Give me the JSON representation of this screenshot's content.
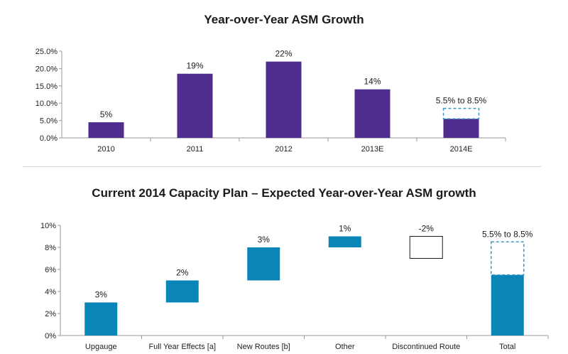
{
  "chart_data": [
    {
      "type": "bar",
      "title": "Year-over-Year ASM Growth",
      "categories": [
        "2010",
        "2011",
        "2012",
        "2013E",
        "2014E"
      ],
      "values": [
        4.5,
        18.5,
        22.0,
        14.0,
        5.5
      ],
      "data_labels": [
        "5%",
        "19%",
        "22%",
        "14%",
        "5.5% to 8.5%"
      ],
      "range_top": 8.5,
      "ylim": [
        0,
        25
      ],
      "yticks": [
        "0.0%",
        "5.0%",
        "10.0%",
        "15.0%",
        "20.0%",
        "25.0%"
      ],
      "bar_color": "#4f2d8f",
      "range_color": "#3a97bf",
      "grid": false
    },
    {
      "type": "bar",
      "subtype": "waterfall",
      "title": "Current 2014 Capacity Plan – Expected Year-over-Year ASM growth",
      "categories": [
        "Upgauge",
        "Full Year Effects [a]",
        "New Routes [b]",
        "Other",
        "Discontinued Route",
        "Total"
      ],
      "values": [
        3,
        2,
        3,
        1,
        -2,
        5.5
      ],
      "bar_ranges": [
        [
          0,
          3
        ],
        [
          3,
          5
        ],
        [
          5,
          8
        ],
        [
          8,
          9
        ],
        [
          7,
          9
        ],
        [
          0,
          5.5
        ]
      ],
      "data_labels": [
        "3%",
        "2%",
        "3%",
        "1%",
        "-2%",
        "5.5% to 8.5%"
      ],
      "range_top": 8.5,
      "ylim": [
        0,
        10
      ],
      "yticks": [
        "0%",
        "2%",
        "4%",
        "6%",
        "8%",
        "10%"
      ],
      "bar_color": "#0a85b8",
      "negative_fill": "#ffffff",
      "negative_stroke": "#1a1a1a",
      "range_color": "#3a97bf",
      "grid": false
    }
  ]
}
